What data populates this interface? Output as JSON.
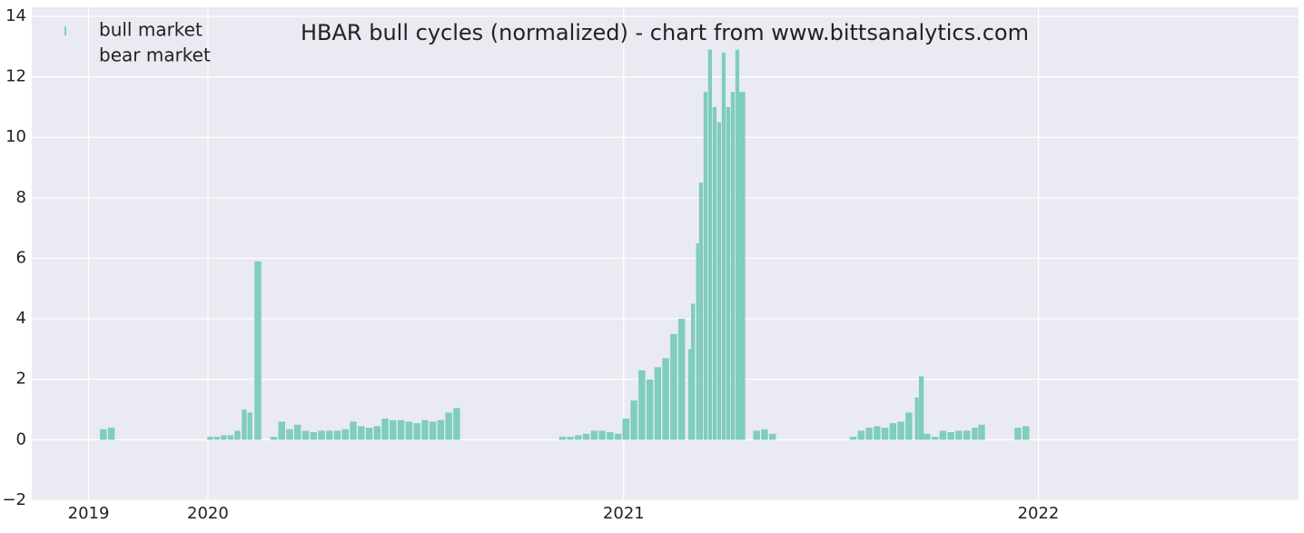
{
  "chart_data": {
    "type": "bar",
    "title": "HBAR bull cycles (normalized)  - chart from www.bittsanalytics.com",
    "x": [
      "2019-10-01",
      "2019-10-08",
      "2020-01-03",
      "2020-01-09",
      "2020-01-15",
      "2020-01-21",
      "2020-01-27",
      "2020-02-02",
      "2020-02-07",
      "2020-02-12",
      "2020-02-14",
      "2020-02-28",
      "2020-03-06",
      "2020-03-13",
      "2020-03-20",
      "2020-03-27",
      "2020-04-03",
      "2020-04-10",
      "2020-04-17",
      "2020-04-24",
      "2020-05-01",
      "2020-05-08",
      "2020-05-15",
      "2020-05-22",
      "2020-05-29",
      "2020-06-05",
      "2020-06-12",
      "2020-06-19",
      "2020-06-26",
      "2020-07-03",
      "2020-07-10",
      "2020-07-17",
      "2020-07-24",
      "2020-07-31",
      "2020-08-07",
      "2020-11-08",
      "2020-11-15",
      "2020-11-22",
      "2020-11-29",
      "2020-12-06",
      "2020-12-13",
      "2020-12-20",
      "2020-12-27",
      "2021-01-03",
      "2021-01-10",
      "2021-01-17",
      "2021-01-24",
      "2021-01-31",
      "2021-02-07",
      "2021-02-14",
      "2021-02-21",
      "2021-02-28",
      "2021-03-03",
      "2021-03-07",
      "2021-03-10",
      "2021-03-14",
      "2021-03-18",
      "2021-03-22",
      "2021-03-26",
      "2021-03-30",
      "2021-04-03",
      "2021-04-07",
      "2021-04-11",
      "2021-04-15",
      "2021-04-28",
      "2021-05-05",
      "2021-05-12",
      "2021-07-22",
      "2021-07-29",
      "2021-08-05",
      "2021-08-12",
      "2021-08-19",
      "2021-08-26",
      "2021-09-02",
      "2021-09-09",
      "2021-09-16",
      "2021-09-20",
      "2021-09-25",
      "2021-10-02",
      "2021-10-09",
      "2021-10-16",
      "2021-10-23",
      "2021-10-30",
      "2021-11-06",
      "2021-11-12",
      "2021-12-14",
      "2021-12-21"
    ],
    "series": [
      {
        "name": "bull market",
        "color": "#7fcdbb",
        "values": [
          0.35,
          0.4,
          0.1,
          0.1,
          0.15,
          0.15,
          0.3,
          1.0,
          0.9,
          2.4,
          5.9,
          0.1,
          0.6,
          0.35,
          0.5,
          0.3,
          0.25,
          0.3,
          0.3,
          0.3,
          0.35,
          0.6,
          0.45,
          0.4,
          0.45,
          0.7,
          0.65,
          0.65,
          0.6,
          0.55,
          0.65,
          0.6,
          0.65,
          0.9,
          1.05,
          0.1,
          0.1,
          0.15,
          0.2,
          0.3,
          0.3,
          0.25,
          0.2,
          0.7,
          1.3,
          2.3,
          2.0,
          2.4,
          2.7,
          3.5,
          4.0,
          3.0,
          4.5,
          6.5,
          8.5,
          11.5,
          12.9,
          11.0,
          10.5,
          12.8,
          11.0,
          11.5,
          12.9,
          11.5,
          0.3,
          0.35,
          0.2,
          0.1,
          0.3,
          0.4,
          0.45,
          0.4,
          0.55,
          0.6,
          0.9,
          1.4,
          2.1,
          0.2,
          0.1,
          0.3,
          0.25,
          0.3,
          0.3,
          0.4,
          0.5,
          0.4,
          0.45
        ]
      },
      {
        "name": "bear market",
        "color": "#eaeaf2",
        "values": [
          null,
          null,
          null,
          null,
          null,
          null,
          null,
          null,
          null,
          null,
          null,
          null,
          null,
          null,
          null,
          null,
          null,
          null,
          null,
          null,
          null,
          null,
          null,
          null,
          null,
          null,
          null,
          null,
          null,
          null,
          null,
          null,
          null,
          null,
          null,
          null,
          null,
          null,
          null,
          null,
          null,
          null,
          null,
          null,
          null,
          null,
          null,
          null,
          null,
          null,
          null,
          null,
          null,
          null,
          null,
          null,
          null,
          null,
          null,
          null,
          null,
          null,
          null,
          null,
          null,
          null,
          null,
          null,
          null,
          null,
          null,
          null,
          null,
          null,
          null,
          null,
          null,
          null,
          null,
          null,
          null,
          null,
          null,
          null,
          null,
          null,
          null
        ]
      }
    ],
    "xlim": [
      "2019-07-30",
      "2022-08-18"
    ],
    "xticks": [
      {
        "value": "2019-09-18",
        "label": "2019"
      },
      {
        "value": "2020-01-01",
        "label": "2020"
      },
      {
        "value": "2021-01-01",
        "label": "2021"
      },
      {
        "value": "2022-01-01",
        "label": "2022"
      }
    ],
    "ylim": [
      -2,
      14.3
    ],
    "yticks": [
      {
        "value": -2,
        "label": "−2"
      },
      0,
      2,
      4,
      6,
      8,
      10,
      12,
      14
    ],
    "grid": true,
    "legend": "upper left",
    "background": "#eaeaf2"
  }
}
